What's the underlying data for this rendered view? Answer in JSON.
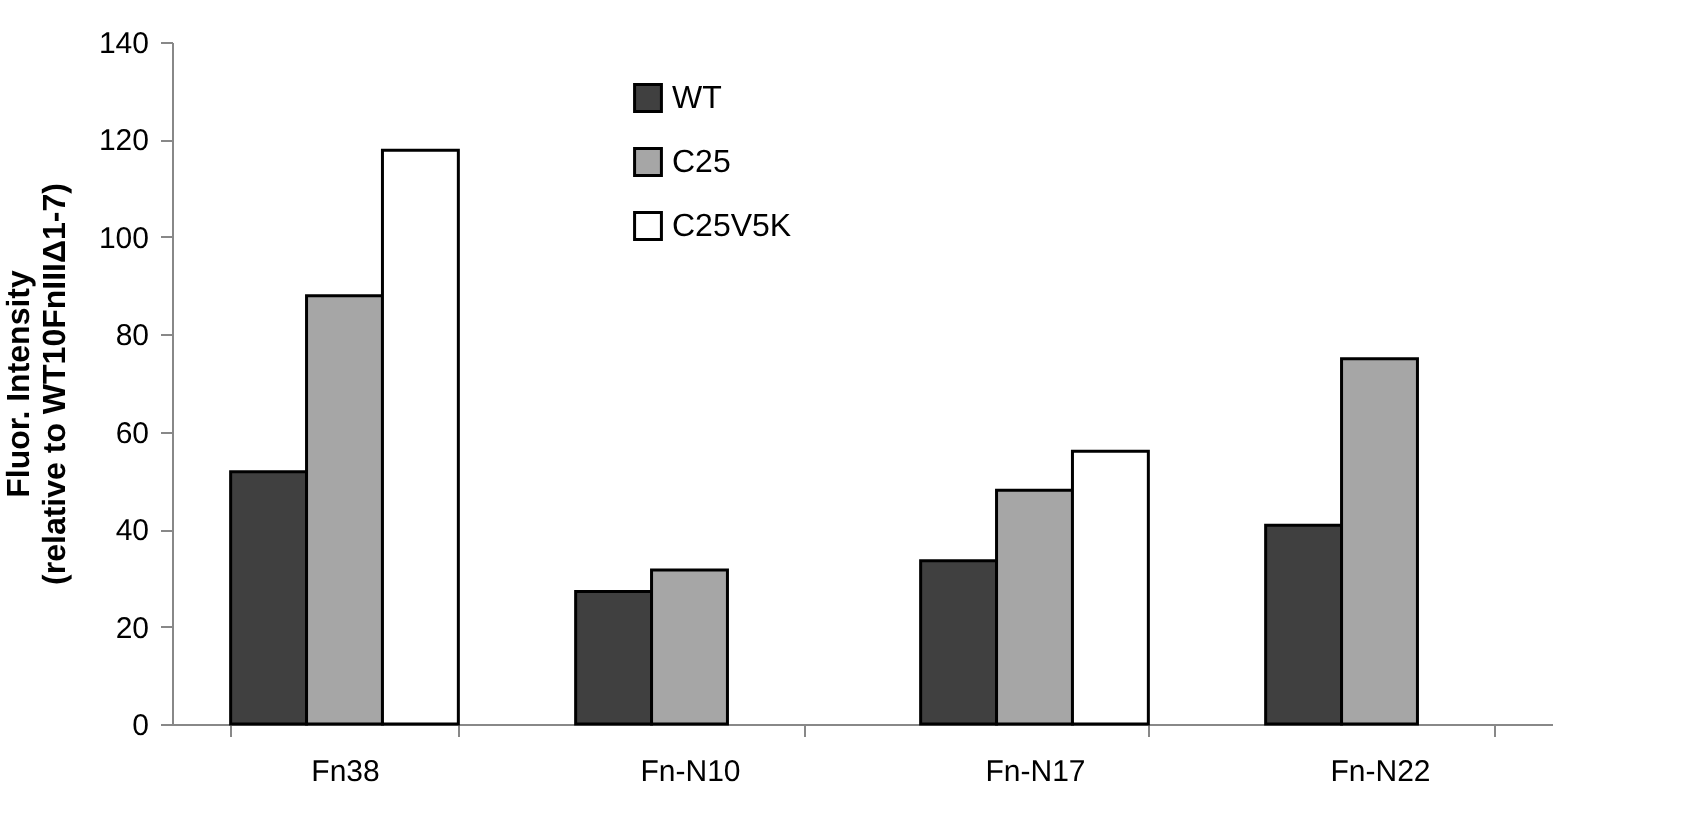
{
  "chart_data": {
    "type": "bar",
    "ylabel": "Fluor. Intensity\n(relative to WT10FnIIIΔ1-7)",
    "categories": [
      "Fn38",
      "Fn-N10",
      "Fn-N17",
      "Fn-N22"
    ],
    "series": [
      {
        "name": "WT",
        "color": "#404040",
        "values": [
          51.8,
          27.2,
          33.5,
          40.8
        ]
      },
      {
        "name": "C25",
        "color": "#a6a6a6",
        "values": [
          87.9,
          31.6,
          48,
          75
        ]
      },
      {
        "name": "C25V5K",
        "color": "#ffffff",
        "values": [
          117.8,
          null,
          56,
          null
        ]
      }
    ],
    "ylim": [
      0,
      140
    ],
    "yticks": [
      0,
      20,
      40,
      60,
      80,
      100,
      120,
      140
    ],
    "grid": false,
    "legend": "top"
  }
}
